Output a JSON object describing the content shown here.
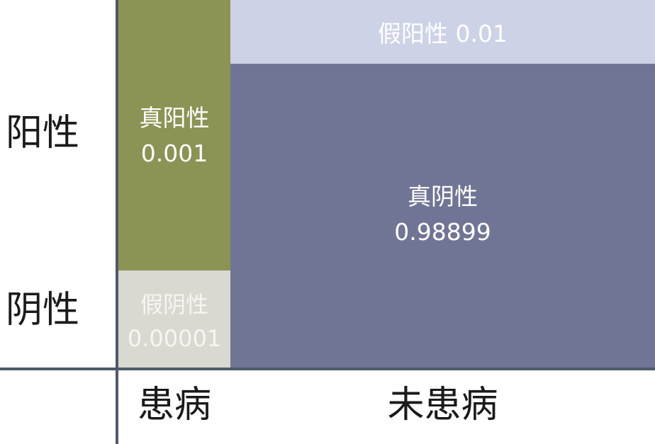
{
  "rows": {
    "positive": "阳性",
    "negative": "阴性"
  },
  "columns": {
    "ill": "患病",
    "healthy": "未患病"
  },
  "cells": {
    "true_positive": {
      "label": "真阳性",
      "value": "0.001"
    },
    "false_negative": {
      "label": "假阴性",
      "value": "0.00001"
    },
    "false_positive": {
      "label": "假阳性",
      "value": "0.01"
    },
    "true_negative": {
      "label": "真阴性",
      "value": "0.98899"
    }
  },
  "colors": {
    "true_positive": "#8c9355",
    "false_negative": "#d9d8d1",
    "false_positive": "#ced2e6",
    "true_negative": "#717595",
    "axis": "#4e5a6b"
  }
}
